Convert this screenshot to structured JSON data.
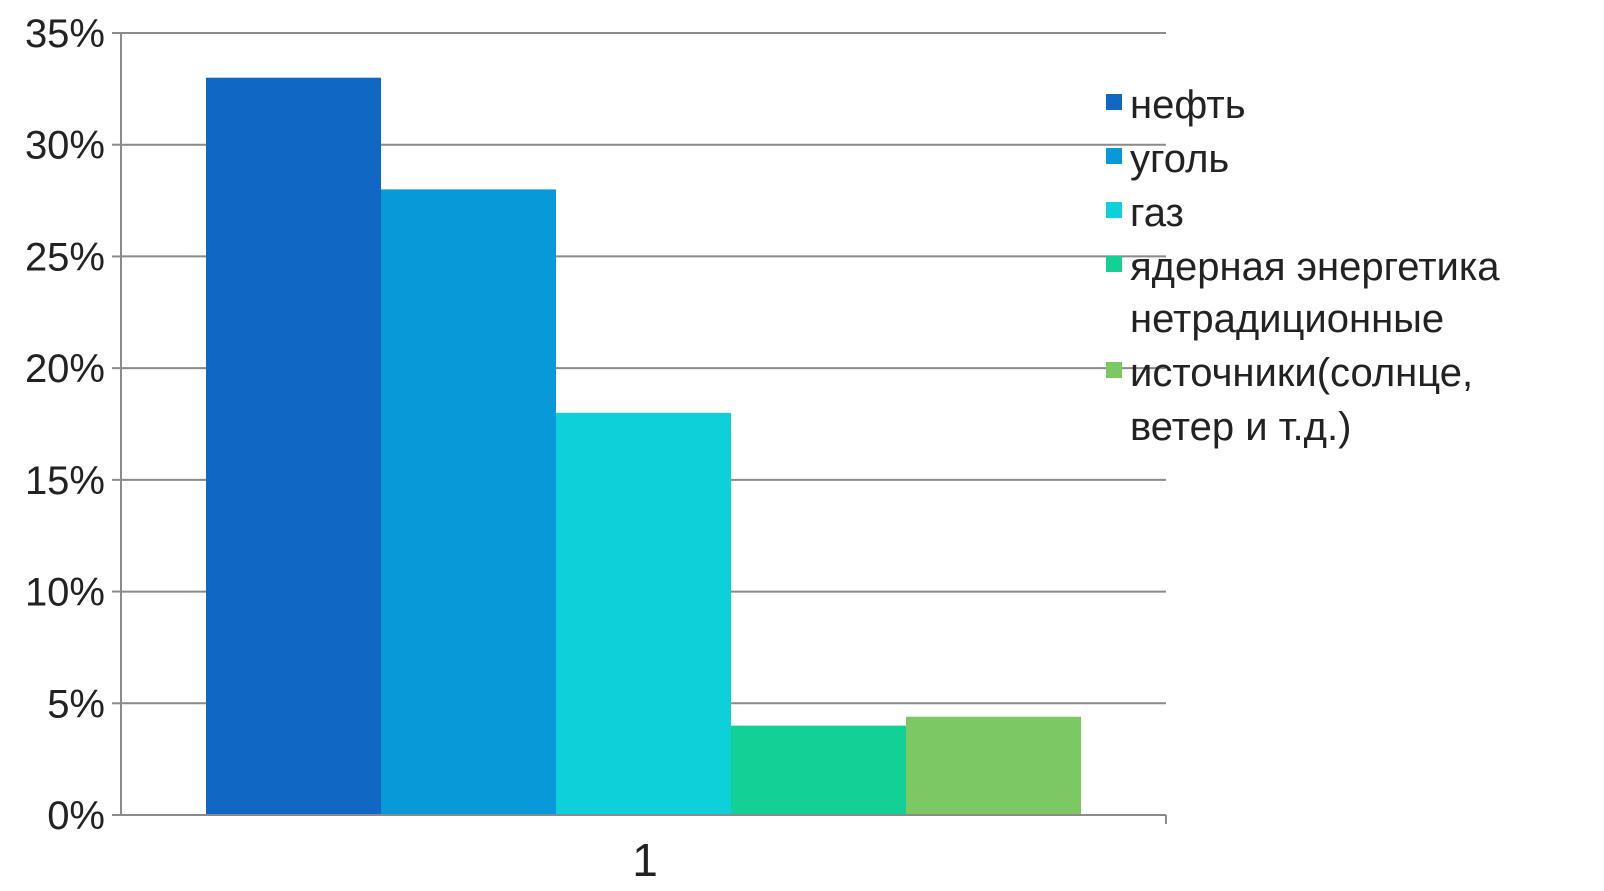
{
  "chart_data": {
    "type": "bar",
    "categories": [
      "1"
    ],
    "series": [
      {
        "name": "нефть",
        "values": [
          33
        ],
        "color": "#1068c4"
      },
      {
        "name": "уголь",
        "values": [
          28
        ],
        "color": "#0899d8"
      },
      {
        "name": "газ",
        "values": [
          18
        ],
        "color": "#0ed0d8"
      },
      {
        "name": "ядерная энергетика",
        "values": [
          4
        ],
        "color": "#12d096"
      },
      {
        "name": "нетрадиционные источники(солнце, ветер и т.д.)",
        "values": [
          4.4
        ],
        "color": "#7cc864"
      }
    ],
    "ylim": [
      0,
      35
    ],
    "yticks": [
      0,
      5,
      10,
      15,
      20,
      25,
      30,
      35
    ],
    "ytick_labels": [
      "0%",
      "5%",
      "10%",
      "15%",
      "20%",
      "25%",
      "30%",
      "35%"
    ],
    "title": "",
    "xlabel": "",
    "ylabel": "",
    "grid": true,
    "legend_position": "right",
    "legend_labels": [
      [
        "нефть"
      ],
      [
        "уголь"
      ],
      [
        "газ"
      ],
      [
        "ядерная энергетика"
      ],
      [
        "нетрадиционные",
        "источники(солнце,",
        "ветер и т.д.)"
      ]
    ],
    "grid_color": "#8a8a8a",
    "axis_color": "#8a8a8a"
  }
}
